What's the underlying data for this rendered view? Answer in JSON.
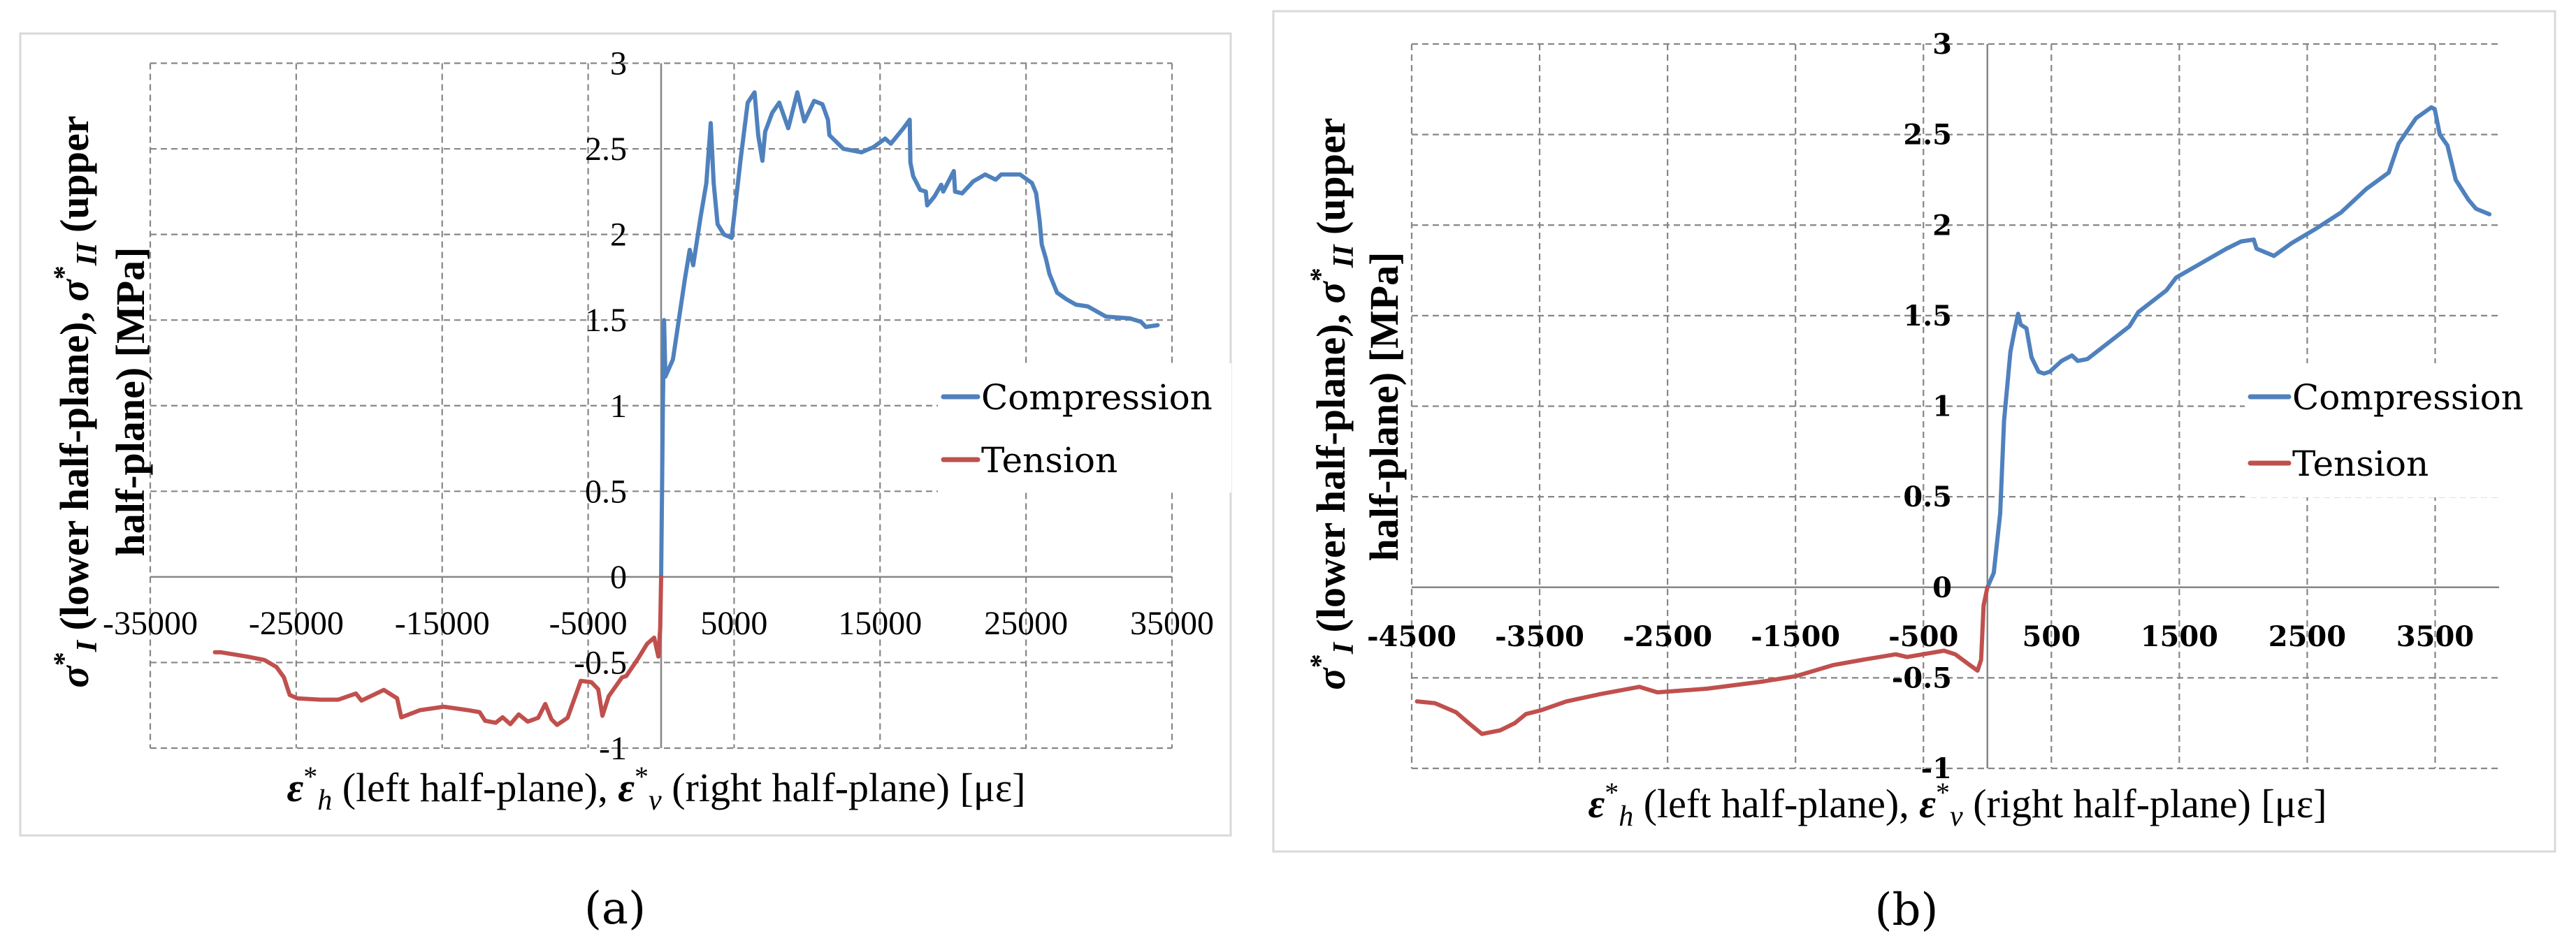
{
  "figure": {
    "panels": [
      {
        "id": "a",
        "caption": "(a)"
      },
      {
        "id": "b",
        "caption": "(b)"
      }
    ]
  },
  "colors": {
    "compression": "#4f81bd",
    "tension": "#c0504d",
    "grid": "#868686",
    "frame": "#d9d9d9"
  },
  "chart_data": [
    {
      "panel": "a",
      "type": "line",
      "caption": "(a)",
      "title": "",
      "ylabel_lines": [
        "σ*_I (lower half-plane), σ*_II (upper",
        "half-plane)  [MPa]"
      ],
      "xlabel": "ε*_h (left half-plane), ε*_v (right half-plane)   [με]",
      "xlim": [
        -35000,
        35000
      ],
      "ylim": [
        -1,
        3
      ],
      "xticks": [
        -35000,
        -25000,
        -15000,
        -5000,
        5000,
        15000,
        25000,
        35000
      ],
      "xtick_labels": [
        "-35000",
        "-25000",
        "-15000",
        "-5000",
        "5000",
        "15000",
        "25000",
        "35000"
      ],
      "yticks": [
        -1,
        -0.5,
        0,
        0.5,
        1,
        1.5,
        2,
        2.5,
        3
      ],
      "ytick_labels": [
        "-1",
        "-0.5",
        "0",
        "0.5",
        "1",
        "1.5",
        "2",
        "2.5",
        "3"
      ],
      "grid": true,
      "legend_position": "right-center",
      "series": [
        {
          "name": "Compression",
          "color": "#4f81bd",
          "points": [
            [
              0,
              0
            ],
            [
              60,
              0.5
            ],
            [
              120,
              1.0
            ],
            [
              200,
              1.5
            ],
            [
              290,
              1.17
            ],
            [
              810,
              1.27
            ],
            [
              1630,
              1.74
            ],
            [
              1960,
              1.91
            ],
            [
              2200,
              1.82
            ],
            [
              2700,
              2.1
            ],
            [
              3100,
              2.3
            ],
            [
              3400,
              2.65
            ],
            [
              3600,
              2.3
            ],
            [
              3870,
              2.06
            ],
            [
              4300,
              2.0
            ],
            [
              4830,
              1.98
            ],
            [
              5450,
              2.44
            ],
            [
              5930,
              2.77
            ],
            [
              6400,
              2.83
            ],
            [
              6650,
              2.58
            ],
            [
              6940,
              2.43
            ],
            [
              7130,
              2.6
            ],
            [
              7610,
              2.71
            ],
            [
              8090,
              2.77
            ],
            [
              8420,
              2.69
            ],
            [
              8710,
              2.62
            ],
            [
              9330,
              2.83
            ],
            [
              9810,
              2.66
            ],
            [
              10480,
              2.78
            ],
            [
              11050,
              2.76
            ],
            [
              11430,
              2.67
            ],
            [
              11530,
              2.58
            ],
            [
              12490,
              2.5
            ],
            [
              13730,
              2.48
            ],
            [
              14550,
              2.51
            ],
            [
              15350,
              2.56
            ],
            [
              15740,
              2.53
            ],
            [
              16600,
              2.62
            ],
            [
              17030,
              2.67
            ],
            [
              17080,
              2.42
            ],
            [
              17270,
              2.34
            ],
            [
              17750,
              2.26
            ],
            [
              18130,
              2.25
            ],
            [
              18230,
              2.17
            ],
            [
              18710,
              2.22
            ],
            [
              19190,
              2.29
            ],
            [
              19330,
              2.25
            ],
            [
              20050,
              2.37
            ],
            [
              20140,
              2.25
            ],
            [
              20620,
              2.24
            ],
            [
              21390,
              2.31
            ],
            [
              22200,
              2.35
            ],
            [
              22920,
              2.32
            ],
            [
              23300,
              2.35
            ],
            [
              24590,
              2.35
            ],
            [
              25410,
              2.3
            ],
            [
              25690,
              2.24
            ],
            [
              25930,
              2.08
            ],
            [
              26080,
              1.94
            ],
            [
              26360,
              1.86
            ],
            [
              26600,
              1.77
            ],
            [
              27130,
              1.66
            ],
            [
              27800,
              1.62
            ],
            [
              28420,
              1.59
            ],
            [
              29230,
              1.58
            ],
            [
              30480,
              1.52
            ],
            [
              32110,
              1.51
            ],
            [
              32870,
              1.49
            ],
            [
              33210,
              1.46
            ],
            [
              34020,
              1.47
            ]
          ]
        },
        {
          "name": "Tension",
          "color": "#c0504d",
          "points": [
            [
              -30570,
              -0.44
            ],
            [
              -30190,
              -0.44
            ],
            [
              -28370,
              -0.465
            ],
            [
              -27180,
              -0.485
            ],
            [
              -26360,
              -0.526
            ],
            [
              -25840,
              -0.587
            ],
            [
              -25450,
              -0.689
            ],
            [
              -24930,
              -0.709
            ],
            [
              -23350,
              -0.717
            ],
            [
              -22110,
              -0.717
            ],
            [
              -20910,
              -0.681
            ],
            [
              -20530,
              -0.722
            ],
            [
              -19710,
              -0.689
            ],
            [
              -19000,
              -0.66
            ],
            [
              -18090,
              -0.709
            ],
            [
              -17800,
              -0.82
            ],
            [
              -16510,
              -0.778
            ],
            [
              -14880,
              -0.758
            ],
            [
              -13250,
              -0.778
            ],
            [
              -12440,
              -0.79
            ],
            [
              -12060,
              -0.84
            ],
            [
              -11340,
              -0.852
            ],
            [
              -10860,
              -0.82
            ],
            [
              -10330,
              -0.86
            ],
            [
              -9760,
              -0.803
            ],
            [
              -9140,
              -0.845
            ],
            [
              -8420,
              -0.823
            ],
            [
              -7940,
              -0.742
            ],
            [
              -7510,
              -0.832
            ],
            [
              -7130,
              -0.864
            ],
            [
              -6410,
              -0.823
            ],
            [
              -5930,
              -0.709
            ],
            [
              -5500,
              -0.607
            ],
            [
              -4780,
              -0.615
            ],
            [
              -4310,
              -0.656
            ],
            [
              -4020,
              -0.811
            ],
            [
              -3590,
              -0.697
            ],
            [
              -2680,
              -0.587
            ],
            [
              -2390,
              -0.579
            ],
            [
              -1580,
              -0.477
            ],
            [
              -960,
              -0.391
            ],
            [
              -480,
              -0.355
            ],
            [
              -190,
              -0.465
            ],
            [
              -60,
              -0.3
            ],
            [
              0,
              0
            ]
          ]
        }
      ]
    },
    {
      "panel": "b",
      "type": "line",
      "caption": "(b)",
      "title": "",
      "ylabel_lines": [
        "σ*_I (lower half-plane), σ*_II (upper",
        "half-plane)  [MPa]"
      ],
      "xlabel": "ε*_h (left half-plane), ε*_v (right half-plane)   [με]",
      "xlim": [
        -4500,
        4000
      ],
      "ylim": [
        -1,
        3
      ],
      "xticks": [
        -4500,
        -3500,
        -2500,
        -1500,
        -500,
        500,
        1500,
        2500,
        3500
      ],
      "xtick_labels": [
        "-4500",
        "-3500",
        "-2500",
        "-1500",
        "-500",
        "500",
        "1500",
        "2500",
        "3500"
      ],
      "yticks": [
        -1,
        -0.5,
        0,
        0.5,
        1,
        1.5,
        2,
        2.5,
        3
      ],
      "ytick_labels": [
        "-1",
        "-0.5",
        "0",
        "0.5",
        "1",
        "1.5",
        "2",
        "2.5",
        "3"
      ],
      "grid": true,
      "legend_position": "right-center",
      "series": [
        {
          "name": "Compression",
          "color": "#4f81bd",
          "points": [
            [
              0,
              0
            ],
            [
              50,
              0.08
            ],
            [
              100,
              0.41
            ],
            [
              130,
              0.92
            ],
            [
              180,
              1.3
            ],
            [
              210,
              1.41
            ],
            [
              240,
              1.51
            ],
            [
              260,
              1.45
            ],
            [
              305,
              1.43
            ],
            [
              345,
              1.27
            ],
            [
              400,
              1.19
            ],
            [
              443,
              1.18
            ],
            [
              487,
              1.19
            ],
            [
              580,
              1.25
            ],
            [
              661,
              1.28
            ],
            [
              706,
              1.25
            ],
            [
              781,
              1.26
            ],
            [
              945,
              1.35
            ],
            [
              1109,
              1.44
            ],
            [
              1180,
              1.52
            ],
            [
              1400,
              1.64
            ],
            [
              1475,
              1.71
            ],
            [
              1672,
              1.79
            ],
            [
              1869,
              1.87
            ],
            [
              1984,
              1.91
            ],
            [
              2082,
              1.92
            ],
            [
              2104,
              1.87
            ],
            [
              2240,
              1.83
            ],
            [
              2377,
              1.9
            ],
            [
              2568,
              1.98
            ],
            [
              2765,
              2.07
            ],
            [
              2962,
              2.2
            ],
            [
              3137,
              2.29
            ],
            [
              3214,
              2.45
            ],
            [
              3350,
              2.59
            ],
            [
              3470,
              2.65
            ],
            [
              3497,
              2.64
            ],
            [
              3536,
              2.5
            ],
            [
              3596,
              2.44
            ],
            [
              3661,
              2.25
            ],
            [
              3760,
              2.14
            ],
            [
              3820,
              2.09
            ],
            [
              3924,
              2.06
            ]
          ]
        },
        {
          "name": "Tension",
          "color": "#c0504d",
          "points": [
            [
              -4459,
              -0.63
            ],
            [
              -4317,
              -0.64
            ],
            [
              -4153,
              -0.69
            ],
            [
              -4055,
              -0.75
            ],
            [
              -3951,
              -0.81
            ],
            [
              -3809,
              -0.79
            ],
            [
              -3694,
              -0.75
            ],
            [
              -3607,
              -0.7
            ],
            [
              -3492,
              -0.68
            ],
            [
              -3290,
              -0.63
            ],
            [
              -3027,
              -0.59
            ],
            [
              -2721,
              -0.55
            ],
            [
              -2650,
              -0.565
            ],
            [
              -2579,
              -0.58
            ],
            [
              -2191,
              -0.56
            ],
            [
              -1754,
              -0.52
            ],
            [
              -1492,
              -0.49
            ],
            [
              -1208,
              -0.43
            ],
            [
              -973,
              -0.4
            ],
            [
              -716,
              -0.37
            ],
            [
              -628,
              -0.385
            ],
            [
              -339,
              -0.35
            ],
            [
              -251,
              -0.37
            ],
            [
              -137,
              -0.43
            ],
            [
              -77,
              -0.46
            ],
            [
              -49,
              -0.4
            ],
            [
              -30,
              -0.1
            ],
            [
              0,
              0
            ]
          ]
        }
      ]
    }
  ]
}
